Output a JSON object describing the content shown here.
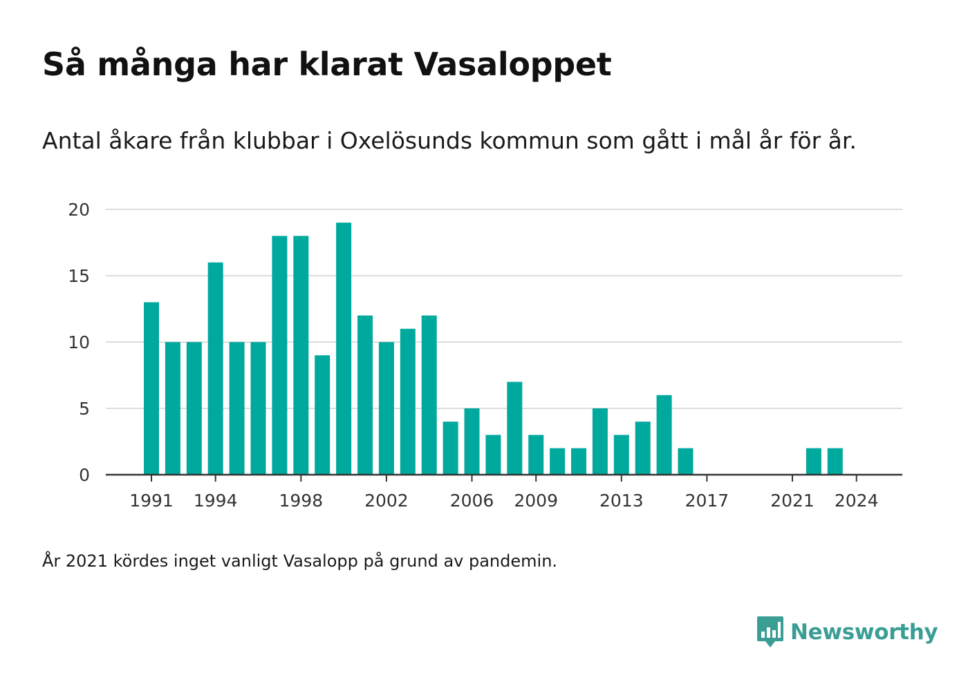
{
  "header": {
    "title": "Så många har klarat Vasaloppet",
    "subtitle": "Antal åkare från klubbar i Oxelösunds kommun som gått i mål år för år."
  },
  "footer": {
    "note": "År 2021 kördes inget vanligt Vasalopp på grund av pandemin.",
    "brand": "Newsworthy",
    "brand_icon": "newsworthy-chart-logo-icon"
  },
  "colors": {
    "bar": "#00a99d",
    "grid": "#dddddd",
    "axis": "#333333",
    "brand": "#3a9e94"
  },
  "chart_data": {
    "type": "bar",
    "x": [
      1991,
      1992,
      1993,
      1994,
      1995,
      1996,
      1997,
      1998,
      1999,
      2000,
      2001,
      2002,
      2003,
      2004,
      2005,
      2006,
      2007,
      2008,
      2009,
      2010,
      2011,
      2012,
      2013,
      2014,
      2015,
      2016,
      2017,
      2018,
      2019,
      2020,
      2021,
      2022,
      2023
    ],
    "values": [
      13,
      10,
      10,
      16,
      10,
      10,
      18,
      18,
      9,
      19,
      12,
      10,
      11,
      12,
      4,
      5,
      3,
      7,
      3,
      2,
      2,
      5,
      3,
      4,
      6,
      2,
      0,
      0,
      0,
      0,
      0,
      2,
      2
    ],
    "x_ticks": [
      "1991",
      "1994",
      "1998",
      "2002",
      "2006",
      "2009",
      "2013",
      "2017",
      "2021",
      "2024"
    ],
    "y_ticks": [
      "0",
      "5",
      "10",
      "15",
      "20"
    ],
    "xlim": [
      1990.5,
      2026
    ],
    "ylim": [
      0,
      20
    ],
    "grid": true,
    "legend": "none"
  }
}
